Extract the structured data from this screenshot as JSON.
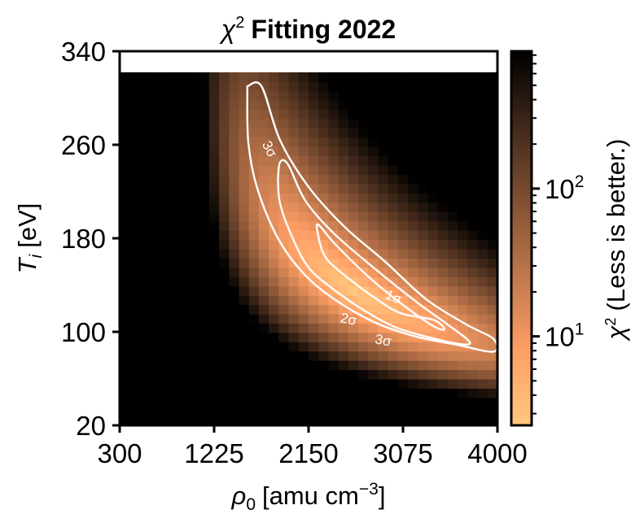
{
  "chart_data": {
    "type": "heatmap",
    "title": {
      "symbol": "χ",
      "superscript": "2",
      "text": "Fitting 2022"
    },
    "xlabel": {
      "symbol": "ρ",
      "subscript": "0",
      "text": "[amu cm",
      "superscript": "−3",
      "close": "]"
    },
    "ylabel": {
      "symbol": "T",
      "subscript": "i",
      "text": "[eV]"
    },
    "colorbar_label": {
      "symbol": "χ",
      "superscript": "2",
      "text": "(Less is better.)"
    },
    "xlim": [
      300,
      4000
    ],
    "ylim": [
      20,
      340
    ],
    "x_ticks": [
      300,
      1225,
      2150,
      3075,
      4000
    ],
    "x_tick_labels": [
      "300",
      "1225",
      "2150",
      "3075",
      "4000"
    ],
    "y_ticks": [
      20,
      100,
      180,
      260,
      340
    ],
    "y_tick_labels": [
      "20",
      "100",
      "180",
      "260",
      "340"
    ],
    "colorbar": {
      "scale": "log",
      "range": [
        2.5,
        850
      ],
      "major_ticks": [
        10,
        100
      ],
      "major_tick_labels": [
        {
          "base": "10",
          "exponent": "1"
        },
        {
          "base": "10",
          "exponent": "2"
        }
      ],
      "colormap": "copper_r"
    },
    "heatmap": {
      "nx": 38,
      "ny": 38,
      "y_data_max": 322,
      "minimum": {
        "x": 2600,
        "y": 135,
        "value": 2.5
      },
      "maximum_value": 850,
      "note_empty_band": "no data above ~322 eV"
    },
    "contours": [
      {
        "label": "1σ",
        "points": [
          [
            2280,
            170
          ],
          [
            2250,
            180
          ],
          [
            2240,
            192
          ],
          [
            2400,
            176
          ],
          [
            2700,
            150
          ],
          [
            3000,
            128
          ],
          [
            3350,
            106
          ],
          [
            3480,
            102
          ],
          [
            3380,
            110
          ],
          [
            3050,
            116
          ],
          [
            2800,
            129
          ],
          [
            2550,
            145
          ],
          [
            2350,
            160
          ],
          [
            2280,
            170
          ]
        ]
      },
      {
        "label": "2σ",
        "points": [
          [
            1850,
            230
          ],
          [
            1870,
            245
          ],
          [
            1950,
            243
          ],
          [
            2120,
            212
          ],
          [
            2400,
            184
          ],
          [
            2800,
            154
          ],
          [
            3200,
            126
          ],
          [
            3500,
            107
          ],
          [
            3730,
            91
          ],
          [
            3600,
            90
          ],
          [
            3300,
            96
          ],
          [
            3000,
            104
          ],
          [
            2700,
            118
          ],
          [
            2400,
            136
          ],
          [
            2150,
            155
          ],
          [
            1980,
            183
          ],
          [
            1870,
            210
          ],
          [
            1850,
            230
          ]
        ]
      },
      {
        "label": "3σ",
        "points": [
          [
            1550,
            310
          ],
          [
            1690,
            310
          ],
          [
            1870,
            264
          ],
          [
            2150,
            224
          ],
          [
            2500,
            190
          ],
          [
            2900,
            160
          ],
          [
            3300,
            128
          ],
          [
            3700,
            106
          ],
          [
            3960,
            94
          ],
          [
            3960,
            83
          ],
          [
            3600,
            89
          ],
          [
            3200,
            96
          ],
          [
            2800,
            108
          ],
          [
            2400,
            128
          ],
          [
            2100,
            150
          ],
          [
            1850,
            180
          ],
          [
            1650,
            222
          ],
          [
            1560,
            262
          ],
          [
            1550,
            310
          ]
        ]
      }
    ],
    "contour_labels": [
      {
        "text": "1σ",
        "x": 2980,
        "y": 129,
        "angle": 22
      },
      {
        "text": "2σ",
        "x": 2540,
        "y": 110,
        "angle": 12
      },
      {
        "text": "3σ",
        "x": 2880,
        "y": 92,
        "angle": 10
      },
      {
        "text": "3σ",
        "x": 1760,
        "y": 256,
        "angle": 62
      }
    ]
  }
}
